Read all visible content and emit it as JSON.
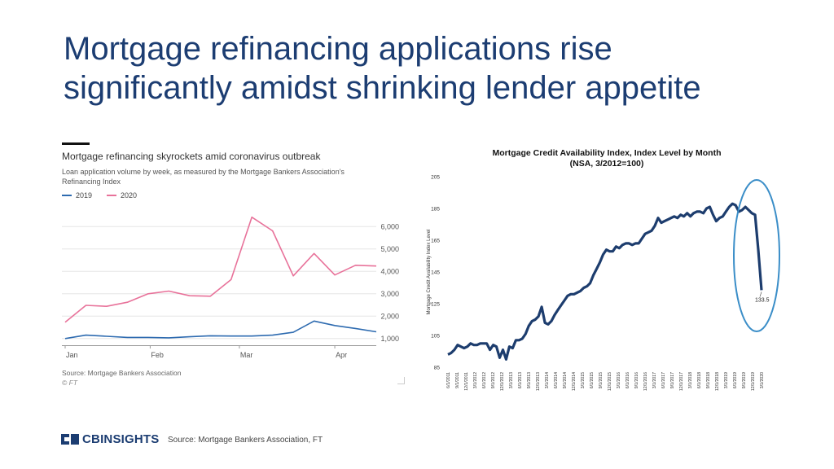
{
  "slide": {
    "title_line1": "Mortgage refinancing applications rise",
    "title_line2": "significantly amidst shrinking lender appetite",
    "source": "Source: Mortgage Bankers Association, FT",
    "logo_text": "CBINSIGHTS"
  },
  "colors": {
    "title": "#1c3d72",
    "series_2019": "#2e6bb0",
    "series_2020": "#e8729a",
    "mcai_line": "#1d3d6e",
    "ellipse": "#3b8ec8"
  },
  "chart_data": [
    {
      "type": "line",
      "title": "Mortgage refinancing skyrockets amid coronavirus outbreak",
      "subtitle": "Loan application volume by week, as measured by the Mortgage Bankers Association's Refinancing Index",
      "x_tick_labels": [
        "Jan",
        "Feb",
        "Mar",
        "Apr"
      ],
      "y_tick_labels": [
        "1,000",
        "2,000",
        "3,000",
        "4,000",
        "5,000",
        "6,000"
      ],
      "ylim": [
        700,
        6700
      ],
      "legend_position": "top-left",
      "source": "Source: Mortgage Bankers Association",
      "credit": "© FT",
      "x_weeks": [
        0,
        1,
        2,
        3,
        4,
        5,
        6,
        7,
        8,
        9,
        10,
        11,
        12,
        13,
        14,
        15
      ],
      "series": [
        {
          "name": "2019",
          "values": [
            1000,
            1150,
            1100,
            1050,
            1050,
            1030,
            1080,
            1120,
            1110,
            1110,
            1150,
            1280,
            1780,
            1580,
            1450,
            1300
          ]
        },
        {
          "name": "2020",
          "values": [
            1730,
            2480,
            2440,
            2620,
            3000,
            3120,
            2910,
            2890,
            3630,
            6420,
            5810,
            3800,
            4800,
            3840,
            4270,
            4240
          ]
        }
      ]
    },
    {
      "type": "line",
      "title": "Mortgage Credit Availability Index, Index Level by Month",
      "subtitle": "(NSA, 3/2012=100)",
      "ylabel": "Mortgage Credit Availability Index Level",
      "ylim": [
        85,
        205
      ],
      "y_ticks": [
        85,
        105,
        125,
        145,
        165,
        185,
        205
      ],
      "x_tick_labels": [
        "6/1/2011",
        "9/1/2011",
        "12/1/2011",
        "3/1/2012",
        "6/1/2012",
        "9/1/2012",
        "12/1/2012",
        "3/1/2013",
        "6/1/2013",
        "9/1/2013",
        "12/1/2013",
        "3/1/2014",
        "6/1/2014",
        "9/1/2014",
        "12/1/2014",
        "3/1/2015",
        "6/1/2015",
        "9/1/2015",
        "12/1/2015",
        "3/1/2016",
        "6/1/2016",
        "9/1/2016",
        "12/1/2016",
        "3/1/2017",
        "6/1/2017",
        "9/1/2017",
        "12/1/2017",
        "3/1/2018",
        "6/1/2018",
        "9/1/2018",
        "12/1/2018",
        "3/1/2019",
        "6/1/2019",
        "9/1/2019",
        "12/1/2019",
        "3/1/2020"
      ],
      "annotation": "133.5",
      "values": [
        93,
        94,
        96,
        99,
        98,
        97,
        98,
        100,
        99,
        99,
        100,
        100,
        100,
        96,
        99,
        98,
        91,
        96,
        90,
        98,
        97,
        102,
        102,
        103,
        106,
        111,
        114,
        115,
        117,
        123,
        113,
        112,
        114,
        118,
        121,
        124,
        127,
        130,
        131,
        131,
        132,
        133,
        135,
        136,
        138,
        143,
        147,
        151,
        156,
        159,
        158,
        158,
        161,
        160,
        162,
        163,
        163,
        162,
        163,
        163,
        166,
        169,
        170,
        171,
        174,
        179,
        176,
        177,
        178,
        179,
        180,
        179,
        181,
        180,
        182,
        180,
        182,
        183,
        183,
        182,
        185,
        186,
        181,
        177,
        179,
        180,
        183,
        186,
        188,
        187,
        183,
        184,
        186,
        184,
        182,
        181,
        159,
        133.5
      ]
    }
  ]
}
